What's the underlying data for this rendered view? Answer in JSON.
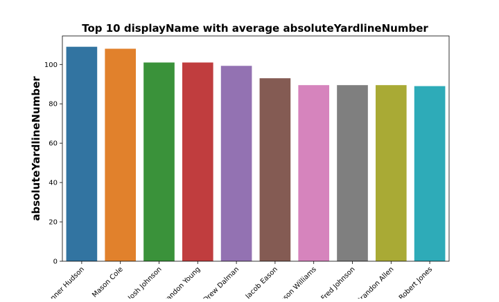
{
  "chart_data": {
    "type": "bar",
    "title": "Top 10 displayName with average absoluteYardlineNumber",
    "xlabel": "",
    "ylabel": "absoluteYardlineNumber",
    "categories": [
      "Tanner Hudson",
      "Mason Cole",
      "Josh Johnson",
      "Brandon Young",
      "Drew Dalman",
      "Jacob Eason",
      "Jameson Williams",
      "Fred Johnson",
      "Brandon Allen",
      "Robert Jones"
    ],
    "values": [
      109,
      108,
      101,
      101,
      99.3,
      93,
      89.5,
      89.5,
      89.5,
      89
    ],
    "colors": [
      "#3274a1",
      "#e1812c",
      "#3a923a",
      "#c03d3e",
      "#9372b2",
      "#845b53",
      "#d684bd",
      "#7f7f7f",
      "#a9aa35",
      "#2eabb8"
    ],
    "ylim": [
      0,
      114.5
    ],
    "yticks": [
      0,
      20,
      40,
      60,
      80,
      100
    ],
    "grid": false,
    "legend": "none"
  }
}
